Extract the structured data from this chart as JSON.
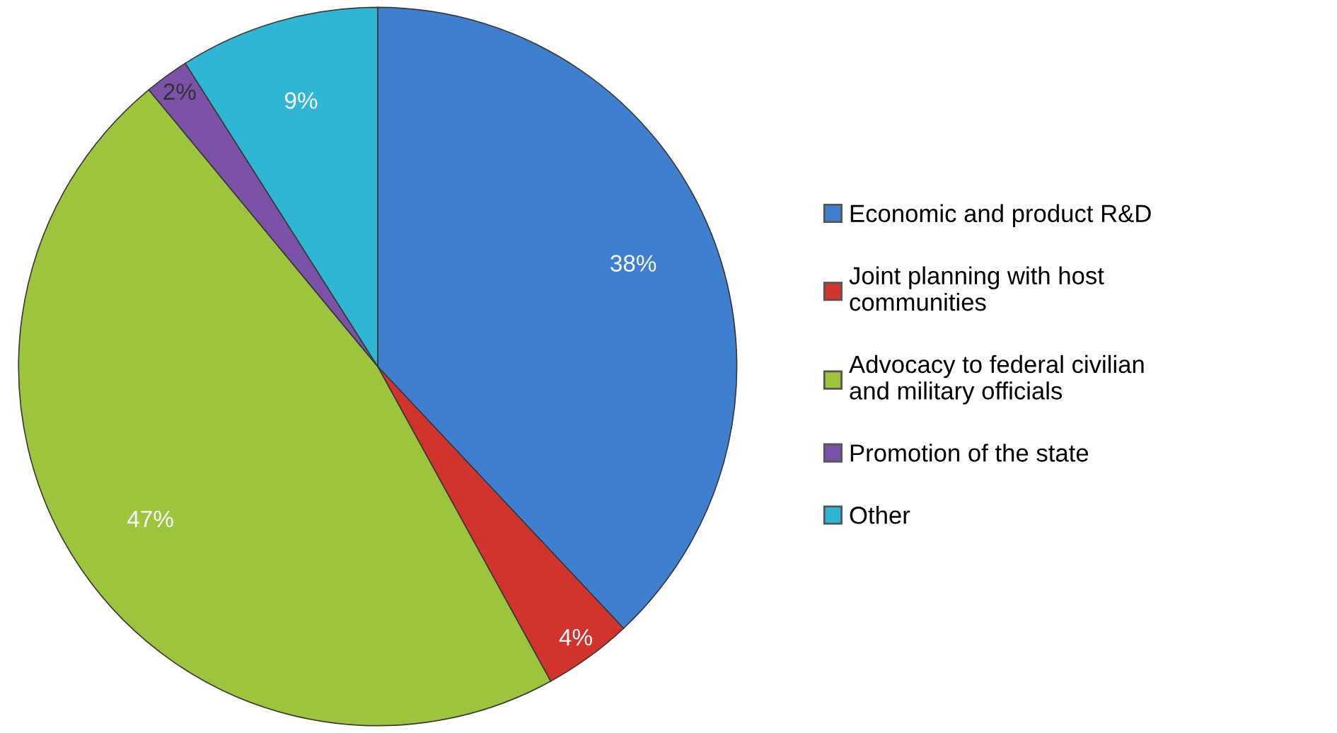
{
  "chart_data": {
    "type": "pie",
    "categories": [
      "Economic and product R&D",
      "Joint planning with host communities",
      "Advocacy to federal civilian and military officials",
      "Promotion of the state",
      "Other"
    ],
    "values": [
      38,
      4,
      47,
      2,
      9
    ],
    "colors": [
      "#3f7fd0",
      "#d0342c",
      "#9cc43c",
      "#7b52a8",
      "#2eb6d4"
    ],
    "value_labels": [
      "38%",
      "4%",
      "47%",
      "2%",
      "9%"
    ],
    "legend": "right"
  }
}
